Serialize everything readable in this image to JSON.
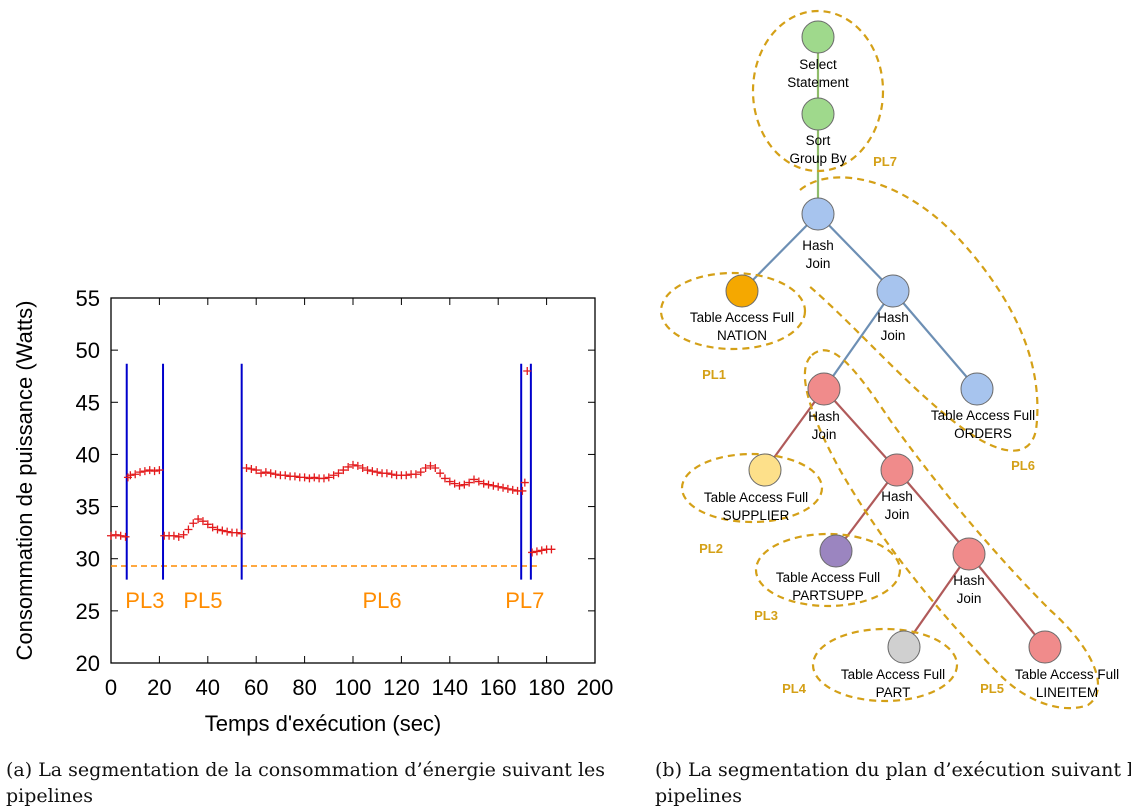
{
  "chart_data": {
    "type": "scatter",
    "xlabel": "Temps d'exécution (sec)",
    "ylabel": "Consommation de puissance (Watts)",
    "xlim": [
      0,
      200
    ],
    "ylim": [
      20,
      55
    ],
    "xticks": [
      "0",
      "20",
      "40",
      "60",
      "80",
      "100",
      "120",
      "140",
      "160",
      "180",
      "200"
    ],
    "yticks": [
      "20",
      "25",
      "30",
      "35",
      "40",
      "45",
      "50",
      "55"
    ],
    "marker": "+",
    "marker_color": "#e31a1c",
    "boundary_color": "#0000cc",
    "baseline_color": "#ff8c00",
    "pipeline_label_color": "#ff8c00",
    "baseline": 29.3,
    "boundaries": [
      6.5,
      21.5,
      54,
      169.5,
      173.5
    ],
    "pipeline_labels": [
      {
        "text": "PL3",
        "x": 14
      },
      {
        "text": "PL5",
        "x": 38
      },
      {
        "text": "PL6",
        "x": 112
      },
      {
        "text": "PL7",
        "x": 171
      }
    ],
    "series": [
      {
        "x": [
          0,
          2,
          4,
          6,
          7,
          8,
          10,
          12,
          14,
          16,
          18,
          20,
          22,
          24,
          26,
          28,
          30,
          32,
          34,
          36,
          38,
          40,
          42,
          44,
          46,
          48,
          50,
          52,
          54,
          56,
          58,
          60,
          62,
          64,
          66,
          68,
          70,
          72,
          74,
          76,
          78,
          80,
          82,
          84,
          86,
          88,
          90,
          92,
          94,
          96,
          98,
          100,
          102,
          104,
          106,
          108,
          110,
          112,
          114,
          116,
          118,
          120,
          122,
          124,
          126,
          128,
          130,
          132,
          134,
          136,
          138,
          140,
          142,
          144,
          146,
          148,
          150,
          152,
          154,
          156,
          158,
          160,
          162,
          164,
          166,
          168,
          170,
          171,
          172,
          174,
          176,
          178,
          180,
          182
        ],
        "y": [
          32.2,
          32.3,
          32.2,
          32.1,
          37.8,
          38.0,
          38.1,
          38.3,
          38.4,
          38.5,
          38.4,
          38.5,
          32.2,
          32.2,
          32.2,
          32.1,
          32.3,
          32.8,
          33.4,
          33.8,
          33.6,
          33.3,
          33.0,
          32.8,
          32.7,
          32.6,
          32.5,
          32.5,
          32.4,
          38.7,
          38.6,
          38.5,
          38.2,
          38.3,
          38.2,
          38.1,
          38.0,
          38.0,
          37.9,
          37.9,
          37.8,
          37.8,
          37.7,
          37.8,
          37.7,
          37.7,
          37.8,
          38.0,
          38.2,
          38.5,
          38.8,
          39.0,
          38.9,
          38.7,
          38.5,
          38.4,
          38.3,
          38.2,
          38.2,
          38.1,
          38.0,
          38.0,
          38.0,
          38.1,
          38.1,
          38.3,
          38.7,
          38.9,
          38.7,
          38.2,
          37.7,
          37.4,
          37.2,
          37.0,
          37.1,
          37.3,
          37.6,
          37.4,
          37.2,
          37.1,
          37.0,
          36.9,
          36.8,
          36.7,
          36.6,
          36.5,
          36.5,
          37.3,
          48.0,
          30.6,
          30.7,
          30.8,
          30.9,
          30.9
        ]
      }
    ]
  },
  "plan_tree": {
    "edge_colors": {
      "green": "#8fbc6a",
      "blue": "#6d8fb4",
      "red": "#b05a5a"
    },
    "group_color": "#d4a017",
    "nodes": [
      {
        "id": "select",
        "line1": "Select",
        "line2": "Statement",
        "color": "#9fd98c"
      },
      {
        "id": "sort",
        "line1": "Sort",
        "line2": "Group By",
        "color": "#9fd98c"
      },
      {
        "id": "hj1",
        "line1": "Hash",
        "line2": "Join",
        "color": "#a7c4ee"
      },
      {
        "id": "nation",
        "line1": "Table Access Full",
        "line2": "NATION",
        "color": "#f5a800"
      },
      {
        "id": "hj2",
        "line1": "Hash",
        "line2": "Join",
        "color": "#a7c4ee"
      },
      {
        "id": "hj3",
        "line1": "Hash",
        "line2": "Join",
        "color": "#f08b8b"
      },
      {
        "id": "orders",
        "line1": "Table Access Full",
        "line2": "ORDERS",
        "color": "#a7c4ee"
      },
      {
        "id": "supplier",
        "line1": "Table Access Full",
        "line2": "SUPPLIER",
        "color": "#fde08a"
      },
      {
        "id": "hj4",
        "line1": "Hash",
        "line2": "Join",
        "color": "#f08b8b"
      },
      {
        "id": "partsupp",
        "line1": "Table Access Full",
        "line2": "PARTSUPP",
        "color": "#9b85c0"
      },
      {
        "id": "hj5",
        "line1": "Hash",
        "line2": "Join",
        "color": "#f08b8b"
      },
      {
        "id": "part",
        "line1": "Table Access Full",
        "line2": "PART",
        "color": "#d0d0d0"
      },
      {
        "id": "lineitem",
        "line1": "Table Access Full",
        "line2": "LINEITEM",
        "color": "#f08b8b"
      }
    ],
    "group_labels": [
      "PL7",
      "PL6",
      "PL1",
      "PL2",
      "PL3",
      "PL4",
      "PL5"
    ]
  },
  "captions": {
    "a": "(a) La segmentation de la consommation d’énergie suivant les\npipelines",
    "b_line1": "(b) La segmentation du plan d’exécution suivant les",
    "b_line2": "pipelines"
  }
}
